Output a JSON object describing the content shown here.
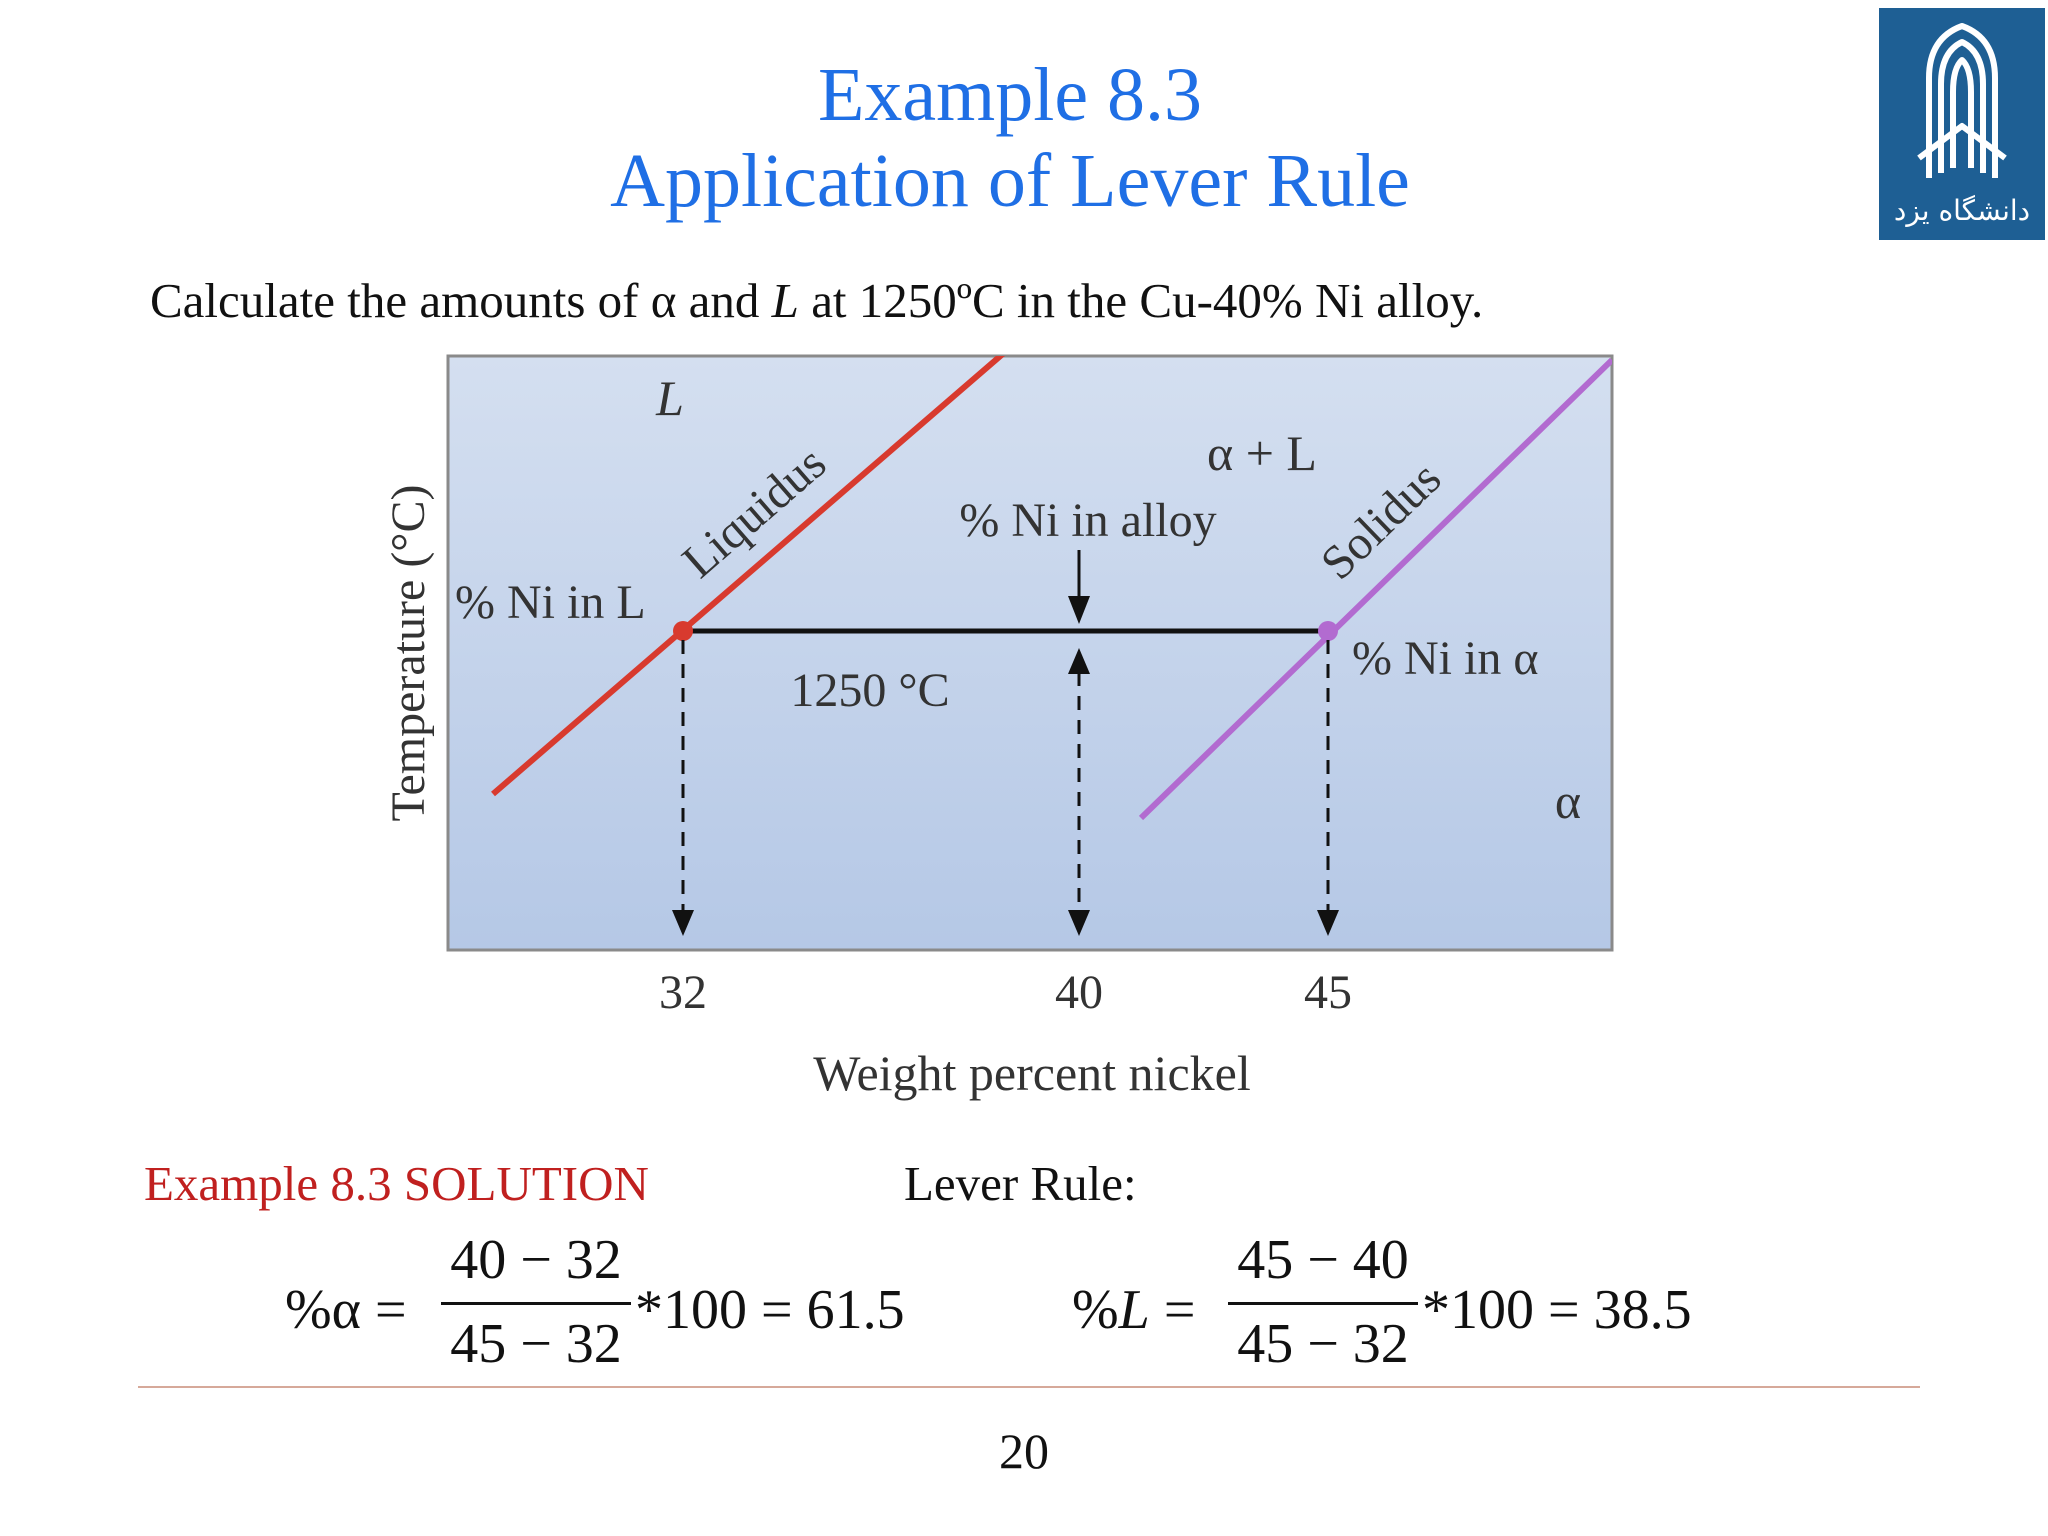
{
  "slide": {
    "title_line1": "Example 8.3",
    "title_line2": "Application of Lever Rule",
    "question_prefix": "Calculate the amounts of  α  and ",
    "question_L": "L",
    "question_suffix": " at 1250ºC in the Cu-40% Ni alloy.",
    "logo_text": "دانشگاه یزد",
    "page_number": "20"
  },
  "diagram": {
    "region_L": "L",
    "region_alpha_L": "α + L",
    "region_alpha": "α",
    "liquidus_label": "Liquidus",
    "solidus_label": "Solidus",
    "ni_in_L": "% Ni in L",
    "ni_in_alloy": "% Ni in alloy",
    "ni_in_alpha": "% Ni in α",
    "temperature_label": "1250 °C",
    "y_axis_label": "Temperature (°C)",
    "x_axis_label": "Weight percent nickel",
    "tick_32": "32",
    "tick_40": "40",
    "tick_45": "45",
    "colors": {
      "liquidus": "#d83a2e",
      "solidus": "#b26bd0",
      "background_top": "#d4dff0",
      "background_bottom": "#b5c8e6"
    }
  },
  "solution": {
    "heading": "Example 8.3 SOLUTION",
    "lever_rule": "Lever Rule:",
    "alpha_lhs": "%α =",
    "alpha_num": "40 − 32",
    "alpha_den": "45 − 32",
    "alpha_rhs": "*100 = 61.5",
    "L_lhs_pct": "%",
    "L_lhs_sym": "L",
    "L_lhs_eq": " =",
    "L_num": "45 − 40",
    "L_den": "45 − 32",
    "L_rhs": "*100 = 38.5"
  }
}
